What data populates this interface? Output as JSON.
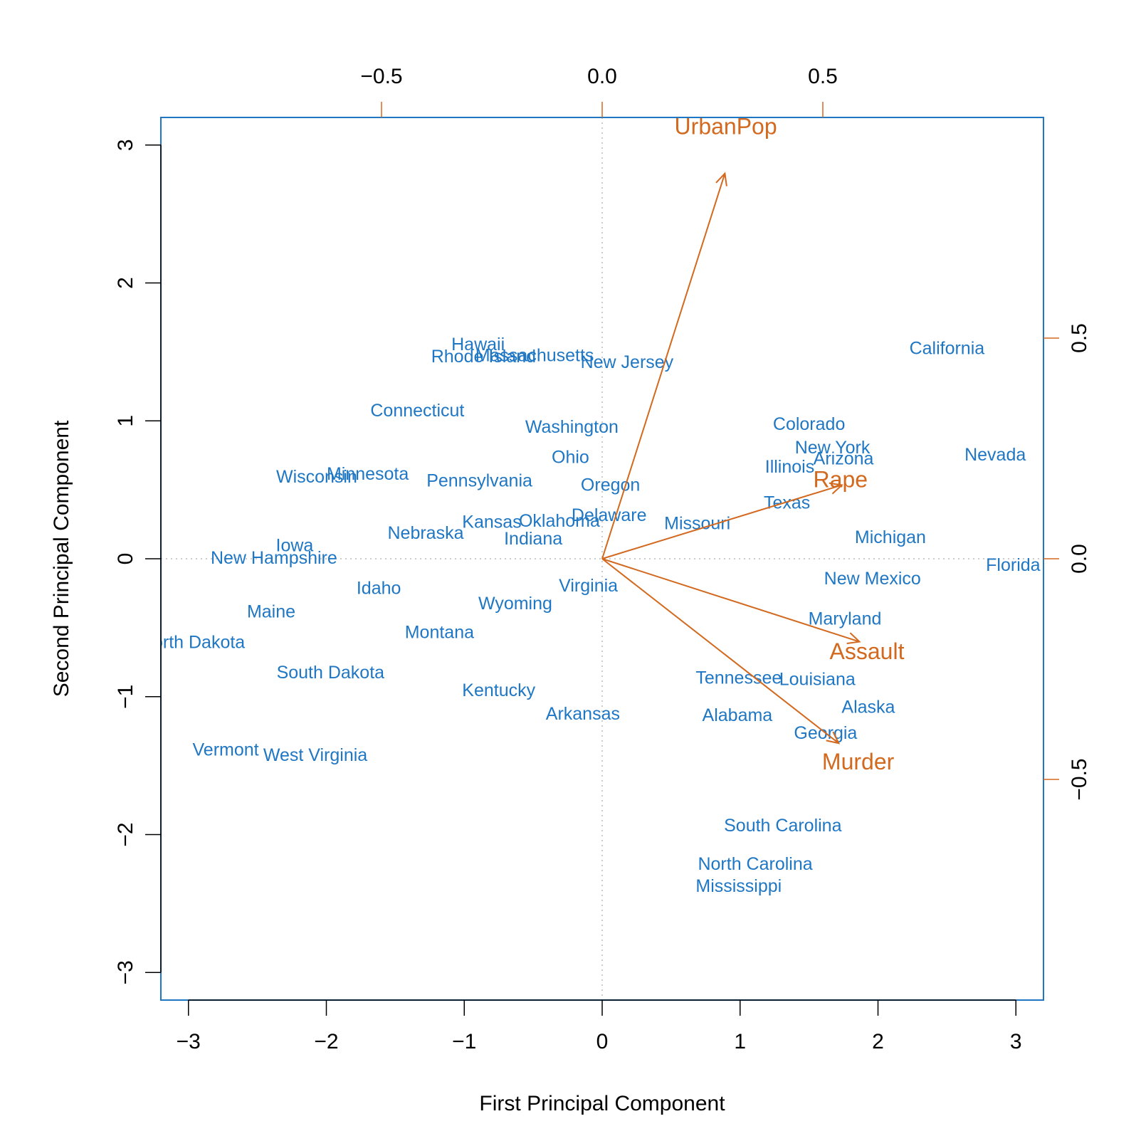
{
  "chart_data": {
    "type": "scatter",
    "subtype": "biplot",
    "title": "",
    "xlabel": "First Principal Component",
    "ylabel": "Second Principal Component",
    "xlim": [
      -3.2,
      3.2
    ],
    "ylim": [
      -3.2,
      3.2
    ],
    "ticks_primary": [
      -3,
      -2,
      -1,
      0,
      1,
      2,
      3
    ],
    "tick_labels_primary": [
      "−3",
      "−2",
      "−1",
      "0",
      "1",
      "2",
      "3"
    ],
    "secondary_axis_range": [
      -1.0,
      1.0
    ],
    "ticks_secondary": [
      -0.5,
      0.0,
      0.5
    ],
    "tick_labels_secondary": [
      "−0.5",
      "0.0",
      "0.5"
    ],
    "colors": {
      "observations": "#1f77c4",
      "variables": "#d2691e",
      "reference": "#bbbbbb",
      "axes": "#000000"
    },
    "points": [
      {
        "label": "Alabama",
        "x": 0.98,
        "y": -1.13
      },
      {
        "label": "Alaska",
        "x": 1.93,
        "y": -1.07
      },
      {
        "label": "Arizona",
        "x": 1.75,
        "y": 0.73
      },
      {
        "label": "Arkansas",
        "x": -0.14,
        "y": -1.12
      },
      {
        "label": "California",
        "x": 2.5,
        "y": 1.53
      },
      {
        "label": "Colorado",
        "x": 1.5,
        "y": 0.98
      },
      {
        "label": "Connecticut",
        "x": -1.34,
        "y": 1.08
      },
      {
        "label": "Delaware",
        "x": 0.05,
        "y": 0.32
      },
      {
        "label": "Florida",
        "x": 2.98,
        "y": -0.04
      },
      {
        "label": "Georgia",
        "x": 1.62,
        "y": -1.26
      },
      {
        "label": "Hawaii",
        "x": -0.9,
        "y": 1.56
      },
      {
        "label": "Idaho",
        "x": -1.62,
        "y": -0.21
      },
      {
        "label": "Illinois",
        "x": 1.36,
        "y": 0.67
      },
      {
        "label": "Indiana",
        "x": -0.5,
        "y": 0.15
      },
      {
        "label": "Iowa",
        "x": -2.23,
        "y": 0.1
      },
      {
        "label": "Kansas",
        "x": -0.8,
        "y": 0.27
      },
      {
        "label": "Kentucky",
        "x": -0.75,
        "y": -0.95
      },
      {
        "label": "Louisiana",
        "x": 1.56,
        "y": -0.87
      },
      {
        "label": "Maine",
        "x": -2.4,
        "y": -0.38
      },
      {
        "label": "Maryland",
        "x": 1.76,
        "y": -0.43
      },
      {
        "label": "Massachusetts",
        "x": -0.49,
        "y": 1.48
      },
      {
        "label": "Michigan",
        "x": 2.09,
        "y": 0.16
      },
      {
        "label": "Minnesota",
        "x": -1.7,
        "y": 0.62
      },
      {
        "label": "Mississippi",
        "x": 0.99,
        "y": -2.37
      },
      {
        "label": "Missouri",
        "x": 0.69,
        "y": 0.26
      },
      {
        "label": "Montana",
        "x": -1.18,
        "y": -0.53
      },
      {
        "label": "Nebraska",
        "x": -1.28,
        "y": 0.19
      },
      {
        "label": "Nevada",
        "x": 2.85,
        "y": 0.76
      },
      {
        "label": "New Hampshire",
        "x": -2.38,
        "y": 0.01
      },
      {
        "label": "New Jersey",
        "x": 0.18,
        "y": 1.43
      },
      {
        "label": "New Mexico",
        "x": 1.96,
        "y": -0.14
      },
      {
        "label": "New York",
        "x": 1.67,
        "y": 0.81
      },
      {
        "label": "North Carolina",
        "x": 1.11,
        "y": -2.21
      },
      {
        "label": "North Dakota",
        "x": -2.97,
        "y": -0.6
      },
      {
        "label": "Ohio",
        "x": -0.23,
        "y": 0.74
      },
      {
        "label": "Oklahoma",
        "x": -0.31,
        "y": 0.28
      },
      {
        "label": "Oregon",
        "x": 0.06,
        "y": 0.54
      },
      {
        "label": "Pennsylvania",
        "x": -0.89,
        "y": 0.57
      },
      {
        "label": "Rhode Island",
        "x": -0.86,
        "y": 1.47
      },
      {
        "label": "South Carolina",
        "x": 1.31,
        "y": -1.93
      },
      {
        "label": "South Dakota",
        "x": -1.97,
        "y": -0.82
      },
      {
        "label": "Tennessee",
        "x": 0.99,
        "y": -0.86
      },
      {
        "label": "Texas",
        "x": 1.34,
        "y": 0.41
      },
      {
        "label": "Vermont",
        "x": -2.73,
        "y": -1.38
      },
      {
        "label": "Virginia",
        "x": -0.1,
        "y": -0.19
      },
      {
        "label": "Washington",
        "x": -0.22,
        "y": 0.96
      },
      {
        "label": "West Virginia",
        "x": -2.08,
        "y": -1.42
      },
      {
        "label": "Wisconsin",
        "x": -2.07,
        "y": 0.6
      },
      {
        "label": "Wyoming",
        "x": -0.63,
        "y": -0.32
      }
    ],
    "loadings": [
      {
        "label": "Murder",
        "x": 0.536,
        "y": -0.418,
        "label_x": 0.58,
        "label_y": -0.46
      },
      {
        "label": "Assault",
        "x": 0.583,
        "y": -0.188,
        "label_x": 0.6,
        "label_y": -0.21
      },
      {
        "label": "UrbanPop",
        "x": 0.278,
        "y": 0.873,
        "label_x": 0.28,
        "label_y": 0.98
      },
      {
        "label": "Rape",
        "x": 0.543,
        "y": 0.167,
        "label_x": 0.54,
        "label_y": 0.18
      }
    ]
  }
}
